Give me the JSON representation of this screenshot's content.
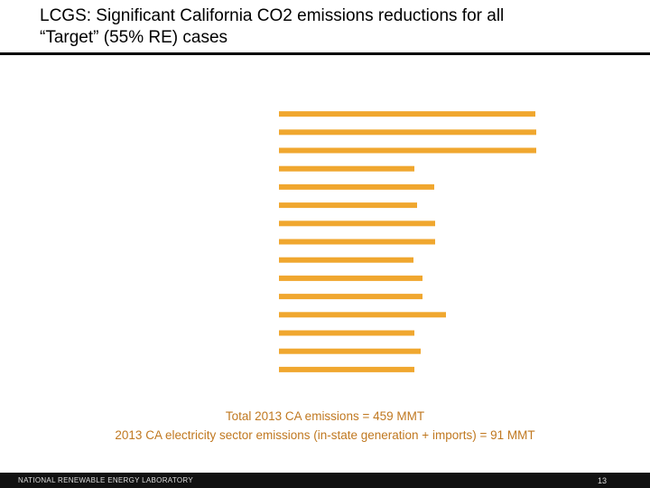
{
  "header": {
    "title_lines": [
      "LCGS: Significant California CO2 emissions reductions for all",
      "“Target” (55% RE) cases"
    ]
  },
  "chart_data": {
    "type": "bar",
    "orientation": "horizontal",
    "color": "#f0a72f",
    "values": [
      284,
      285,
      285,
      150,
      172,
      153,
      173,
      173,
      149,
      159,
      159,
      185,
      150,
      157,
      150
    ]
  },
  "notes": [
    "Total 2013 CA emissions = 459 MMT",
    "2013 CA electricity sector emissions (in-state generation + imports) = 91 MMT"
  ],
  "footer": {
    "organization": "NATIONAL RENEWABLE ENERGY LABORATORY",
    "page_number": 13
  }
}
